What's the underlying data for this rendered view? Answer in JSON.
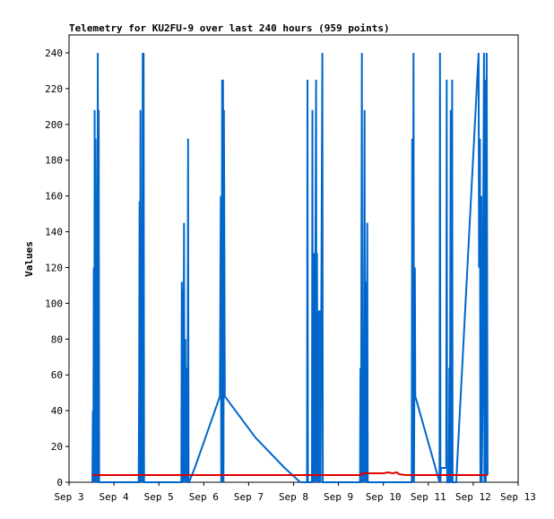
{
  "chart_data": {
    "type": "line",
    "title": "Telemetry for KU2FU-9 over last 240 hours (959 points)",
    "xlabel": "",
    "ylabel": "Values",
    "xlim": [
      3,
      13
    ],
    "ylim": [
      0,
      250
    ],
    "grid": false,
    "legend": "none",
    "x_ticks": [
      {
        "value": 3,
        "label": "Sep 3"
      },
      {
        "value": 4,
        "label": "Sep 4"
      },
      {
        "value": 5,
        "label": "Sep 5"
      },
      {
        "value": 6,
        "label": "Sep 6"
      },
      {
        "value": 7,
        "label": "Sep 7"
      },
      {
        "value": 8,
        "label": "Sep 8"
      },
      {
        "value": 9,
        "label": "Sep 9"
      },
      {
        "value": 10,
        "label": "Sep 10"
      },
      {
        "value": 11,
        "label": "Sep 11"
      },
      {
        "value": 12,
        "label": "Sep 12"
      },
      {
        "value": 13,
        "label": "Sep 13"
      }
    ],
    "y_ticks": [
      0,
      20,
      40,
      60,
      80,
      100,
      120,
      140,
      160,
      180,
      200,
      220,
      240
    ],
    "series": [
      {
        "color": "#0066cc",
        "points": [
          [
            3.52,
            0
          ],
          [
            3.53,
            40
          ],
          [
            3.54,
            0
          ],
          [
            3.55,
            120
          ],
          [
            3.56,
            0
          ],
          [
            3.57,
            208
          ],
          [
            3.58,
            0
          ],
          [
            3.59,
            192
          ],
          [
            3.6,
            137
          ],
          [
            3.61,
            0
          ],
          [
            3.62,
            112
          ],
          [
            3.63,
            0
          ],
          [
            3.64,
            240
          ],
          [
            3.65,
            0
          ],
          [
            3.66,
            208
          ],
          [
            3.67,
            0
          ],
          [
            4.55,
            0
          ],
          [
            4.56,
            52
          ],
          [
            4.57,
            157
          ],
          [
            4.58,
            0
          ],
          [
            4.59,
            208
          ],
          [
            4.6,
            52
          ],
          [
            4.61,
            0
          ],
          [
            4.62,
            145
          ],
          [
            4.63,
            0
          ],
          [
            4.64,
            240
          ],
          [
            4.65,
            0
          ],
          [
            4.66,
            240
          ],
          [
            4.67,
            0
          ],
          [
            5.5,
            0
          ],
          [
            5.51,
            112
          ],
          [
            5.52,
            0
          ],
          [
            5.53,
            108
          ],
          [
            5.54,
            0
          ],
          [
            5.56,
            145
          ],
          [
            5.57,
            0
          ],
          [
            5.59,
            80
          ],
          [
            5.6,
            0
          ],
          [
            5.62,
            64
          ],
          [
            5.63,
            0
          ],
          [
            5.64,
            8
          ],
          [
            5.65,
            192
          ],
          [
            5.66,
            0
          ],
          [
            5.67,
            0
          ],
          [
            5.8,
            8
          ],
          [
            6.36,
            48
          ],
          [
            6.38,
            160
          ],
          [
            6.39,
            0
          ],
          [
            6.4,
            80
          ],
          [
            6.41,
            225
          ],
          [
            6.42,
            0
          ],
          [
            6.43,
            225
          ],
          [
            6.44,
            0
          ],
          [
            6.45,
            208
          ],
          [
            6.46,
            128
          ],
          [
            6.47,
            48
          ],
          [
            7.15,
            25
          ],
          [
            7.8,
            8
          ],
          [
            8.15,
            0
          ],
          [
            8.3,
            0
          ],
          [
            8.31,
            225
          ],
          [
            8.32,
            0
          ],
          [
            8.41,
            0
          ],
          [
            8.42,
            208
          ],
          [
            8.43,
            0
          ],
          [
            8.45,
            128
          ],
          [
            8.46,
            64
          ],
          [
            8.47,
            0
          ],
          [
            8.5,
            225
          ],
          [
            8.51,
            0
          ],
          [
            8.52,
            128
          ],
          [
            8.53,
            64
          ],
          [
            8.54,
            0
          ],
          [
            8.56,
            96
          ],
          [
            8.57,
            0
          ],
          [
            8.58,
            96
          ],
          [
            8.6,
            0
          ],
          [
            8.64,
            240
          ],
          [
            8.65,
            0
          ],
          [
            9.48,
            0
          ],
          [
            9.49,
            64
          ],
          [
            9.5,
            0
          ],
          [
            9.52,
            240
          ],
          [
            9.53,
            0
          ],
          [
            9.55,
            64
          ],
          [
            9.56,
            0
          ],
          [
            9.58,
            208
          ],
          [
            9.59,
            0
          ],
          [
            9.61,
            112
          ],
          [
            9.62,
            0
          ],
          [
            9.64,
            145
          ],
          [
            9.65,
            0
          ],
          [
            9.66,
            0
          ],
          [
            10.63,
            0
          ],
          [
            10.64,
            192
          ],
          [
            10.65,
            0
          ],
          [
            10.67,
            240
          ],
          [
            10.68,
            0
          ],
          [
            10.7,
            120
          ],
          [
            10.71,
            48
          ],
          [
            11.25,
            0
          ],
          [
            11.26,
            240
          ],
          [
            11.27,
            0
          ],
          [
            11.28,
            8
          ],
          [
            11.4,
            8
          ],
          [
            11.41,
            225
          ],
          [
            11.42,
            0
          ],
          [
            11.46,
            0
          ],
          [
            11.47,
            64
          ],
          [
            11.48,
            0
          ],
          [
            11.5,
            208
          ],
          [
            11.51,
            0
          ],
          [
            11.53,
            225
          ],
          [
            11.54,
            0
          ],
          [
            11.56,
            0
          ],
          [
            11.62,
            0
          ],
          [
            12.12,
            240
          ],
          [
            12.13,
            120
          ],
          [
            12.15,
            192
          ],
          [
            12.16,
            0
          ],
          [
            12.18,
            160
          ],
          [
            12.19,
            0
          ],
          [
            12.21,
            48
          ],
          [
            12.22,
            128
          ],
          [
            12.24,
            240
          ],
          [
            12.25,
            0
          ],
          [
            12.27,
            225
          ],
          [
            12.28,
            0
          ],
          [
            12.3,
            240
          ],
          [
            12.32,
            4
          ]
        ]
      },
      {
        "color": "#e00000",
        "points": [
          [
            3.52,
            4
          ],
          [
            4.0,
            4
          ],
          [
            5.0,
            4
          ],
          [
            6.0,
            4
          ],
          [
            7.0,
            4
          ],
          [
            8.0,
            4
          ],
          [
            9.0,
            4
          ],
          [
            9.5,
            4
          ],
          [
            9.52,
            5
          ],
          [
            9.8,
            5
          ],
          [
            9.9,
            5
          ],
          [
            10.0,
            5
          ],
          [
            10.1,
            5.5
          ],
          [
            10.2,
            5
          ],
          [
            10.3,
            5.5
          ],
          [
            10.35,
            4.5
          ],
          [
            10.5,
            4
          ],
          [
            11.0,
            4
          ],
          [
            11.5,
            4
          ],
          [
            12.0,
            4
          ],
          [
            12.32,
            4
          ]
        ]
      }
    ]
  }
}
